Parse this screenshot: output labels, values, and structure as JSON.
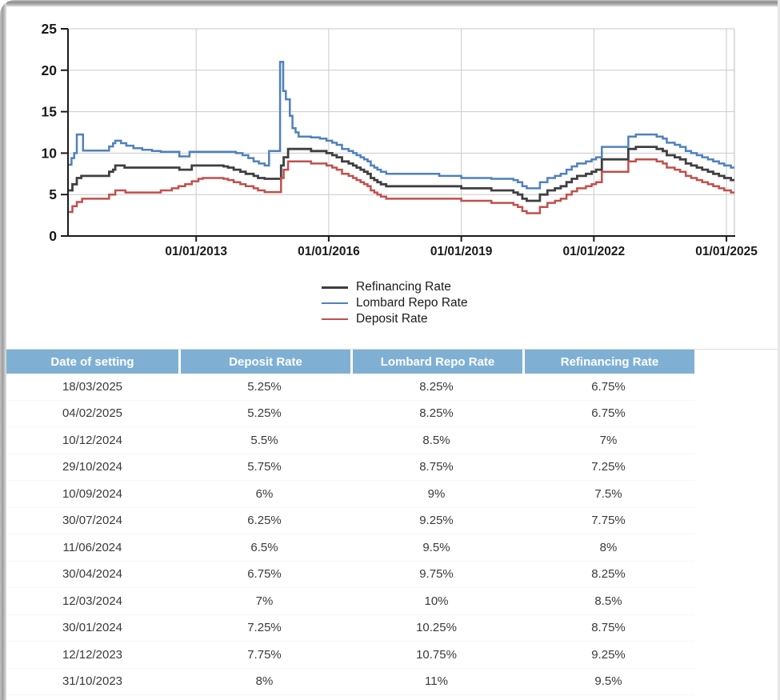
{
  "chart_data": {
    "type": "line",
    "interpolation": "step-after",
    "title": "",
    "xlabel": "",
    "ylabel": "",
    "grid": true,
    "legend_position": "bottom",
    "ylim": [
      0,
      25
    ],
    "y_ticks": [
      0,
      5,
      10,
      15,
      20,
      25
    ],
    "x_range": [
      2010.1,
      2025.18
    ],
    "x_ticks": [
      {
        "t": 2013,
        "label": "01/01/2013"
      },
      {
        "t": 2016,
        "label": "01/01/2016"
      },
      {
        "t": 2019,
        "label": "01/01/2019"
      },
      {
        "t": 2022,
        "label": "01/01/2022"
      },
      {
        "t": 2025,
        "label": "01/01/2025"
      }
    ],
    "series": [
      {
        "name": "Refinancing Rate",
        "color": "#3f3f3f",
        "points": [
          [
            2010.12,
            5.5
          ],
          [
            2010.2,
            6.25
          ],
          [
            2010.3,
            7.0
          ],
          [
            2010.4,
            7.25
          ],
          [
            2011.03,
            7.75
          ],
          [
            2011.12,
            8.0
          ],
          [
            2011.17,
            8.5
          ],
          [
            2011.38,
            8.25
          ],
          [
            2012.62,
            8.0
          ],
          [
            2012.9,
            8.5
          ],
          [
            2013.62,
            8.4
          ],
          [
            2013.72,
            8.25
          ],
          [
            2013.85,
            8.0
          ],
          [
            2014.0,
            7.75
          ],
          [
            2014.12,
            7.5
          ],
          [
            2014.3,
            7.25
          ],
          [
            2014.4,
            7.0
          ],
          [
            2014.55,
            6.9
          ],
          [
            2014.92,
            8.5
          ],
          [
            2014.98,
            9.5
          ],
          [
            2015.08,
            10.5
          ],
          [
            2015.6,
            10.25
          ],
          [
            2015.95,
            10.0
          ],
          [
            2016.08,
            9.75
          ],
          [
            2016.18,
            9.5
          ],
          [
            2016.3,
            9.0
          ],
          [
            2016.45,
            8.75
          ],
          [
            2016.55,
            8.5
          ],
          [
            2016.63,
            8.25
          ],
          [
            2016.72,
            8.0
          ],
          [
            2016.8,
            7.75
          ],
          [
            2016.88,
            7.5
          ],
          [
            2016.95,
            7.0
          ],
          [
            2017.03,
            6.75
          ],
          [
            2017.1,
            6.5
          ],
          [
            2017.18,
            6.25
          ],
          [
            2017.3,
            6.0
          ],
          [
            2019.0,
            5.75
          ],
          [
            2019.68,
            5.5
          ],
          [
            2020.18,
            5.25
          ],
          [
            2020.28,
            5.0
          ],
          [
            2020.38,
            4.5
          ],
          [
            2020.48,
            4.25
          ],
          [
            2020.78,
            5.0
          ],
          [
            2020.95,
            5.5
          ],
          [
            2021.12,
            5.75
          ],
          [
            2021.25,
            6.0
          ],
          [
            2021.38,
            6.5
          ],
          [
            2021.5,
            6.9
          ],
          [
            2021.62,
            7.25
          ],
          [
            2021.82,
            7.5
          ],
          [
            2021.95,
            7.75
          ],
          [
            2022.05,
            8.0
          ],
          [
            2022.18,
            9.25
          ],
          [
            2022.78,
            10.5
          ],
          [
            2022.95,
            10.75
          ],
          [
            2023.42,
            10.5
          ],
          [
            2023.56,
            10.25
          ],
          [
            2023.65,
            9.75
          ],
          [
            2023.83,
            9.5
          ],
          [
            2023.95,
            9.25
          ],
          [
            2024.08,
            8.75
          ],
          [
            2024.2,
            8.5
          ],
          [
            2024.33,
            8.25
          ],
          [
            2024.45,
            8.0
          ],
          [
            2024.58,
            7.75
          ],
          [
            2024.7,
            7.5
          ],
          [
            2024.83,
            7.25
          ],
          [
            2024.95,
            7.0
          ],
          [
            2025.1,
            6.75
          ],
          [
            2025.18,
            6.75
          ]
        ]
      },
      {
        "name": "Lombard Repo Rate",
        "color": "#4f81bd",
        "points": [
          [
            2010.12,
            8.6
          ],
          [
            2010.18,
            9.4
          ],
          [
            2010.24,
            10.0
          ],
          [
            2010.3,
            12.25
          ],
          [
            2010.44,
            10.3
          ],
          [
            2011.03,
            10.8
          ],
          [
            2011.12,
            11.2
          ],
          [
            2011.17,
            11.5
          ],
          [
            2011.3,
            11.2
          ],
          [
            2011.42,
            10.9
          ],
          [
            2011.58,
            10.6
          ],
          [
            2011.78,
            10.4
          ],
          [
            2012.0,
            10.25
          ],
          [
            2012.2,
            10.15
          ],
          [
            2012.62,
            9.6
          ],
          [
            2012.85,
            10.15
          ],
          [
            2013.9,
            10.0
          ],
          [
            2014.05,
            9.75
          ],
          [
            2014.18,
            9.4
          ],
          [
            2014.3,
            9.0
          ],
          [
            2014.42,
            8.75
          ],
          [
            2014.55,
            8.5
          ],
          [
            2014.65,
            10.25
          ],
          [
            2014.9,
            21.0
          ],
          [
            2014.97,
            17.5
          ],
          [
            2015.03,
            16.5
          ],
          [
            2015.12,
            14.5
          ],
          [
            2015.18,
            13.0
          ],
          [
            2015.25,
            12.5
          ],
          [
            2015.32,
            12.0
          ],
          [
            2015.6,
            11.9
          ],
          [
            2015.8,
            11.75
          ],
          [
            2015.95,
            11.5
          ],
          [
            2016.08,
            11.25
          ],
          [
            2016.18,
            11.0
          ],
          [
            2016.3,
            10.5
          ],
          [
            2016.45,
            10.25
          ],
          [
            2016.55,
            10.0
          ],
          [
            2016.63,
            9.75
          ],
          [
            2016.72,
            9.5
          ],
          [
            2016.8,
            9.25
          ],
          [
            2016.88,
            9.0
          ],
          [
            2016.95,
            8.5
          ],
          [
            2017.03,
            8.25
          ],
          [
            2017.1,
            8.0
          ],
          [
            2017.18,
            7.75
          ],
          [
            2017.3,
            7.5
          ],
          [
            2018.5,
            7.25
          ],
          [
            2019.0,
            7.0
          ],
          [
            2019.68,
            6.9
          ],
          [
            2020.18,
            6.75
          ],
          [
            2020.28,
            6.5
          ],
          [
            2020.38,
            6.0
          ],
          [
            2020.48,
            5.75
          ],
          [
            2020.78,
            6.5
          ],
          [
            2020.95,
            7.0
          ],
          [
            2021.12,
            7.25
          ],
          [
            2021.25,
            7.5
          ],
          [
            2021.38,
            8.0
          ],
          [
            2021.5,
            8.4
          ],
          [
            2021.62,
            8.75
          ],
          [
            2021.82,
            9.0
          ],
          [
            2021.95,
            9.25
          ],
          [
            2022.05,
            9.5
          ],
          [
            2022.18,
            10.75
          ],
          [
            2022.78,
            12.0
          ],
          [
            2022.95,
            12.25
          ],
          [
            2023.42,
            12.0
          ],
          [
            2023.56,
            11.75
          ],
          [
            2023.65,
            11.25
          ],
          [
            2023.83,
            11.0
          ],
          [
            2023.95,
            10.75
          ],
          [
            2024.08,
            10.25
          ],
          [
            2024.2,
            10.0
          ],
          [
            2024.33,
            9.75
          ],
          [
            2024.45,
            9.5
          ],
          [
            2024.58,
            9.25
          ],
          [
            2024.7,
            9.0
          ],
          [
            2024.83,
            8.75
          ],
          [
            2024.95,
            8.5
          ],
          [
            2025.1,
            8.25
          ],
          [
            2025.18,
            8.25
          ]
        ]
      },
      {
        "name": "Deposit Rate",
        "color": "#c0504d",
        "points": [
          [
            2010.12,
            2.9
          ],
          [
            2010.2,
            3.6
          ],
          [
            2010.3,
            4.1
          ],
          [
            2010.42,
            4.5
          ],
          [
            2011.03,
            5.0
          ],
          [
            2011.17,
            5.5
          ],
          [
            2011.4,
            5.25
          ],
          [
            2012.2,
            5.5
          ],
          [
            2012.45,
            5.75
          ],
          [
            2012.6,
            6.0
          ],
          [
            2012.75,
            6.25
          ],
          [
            2012.9,
            6.6
          ],
          [
            2013.05,
            6.9
          ],
          [
            2013.15,
            7.0
          ],
          [
            2013.62,
            6.9
          ],
          [
            2013.72,
            6.75
          ],
          [
            2013.85,
            6.5
          ],
          [
            2014.0,
            6.25
          ],
          [
            2014.12,
            6.0
          ],
          [
            2014.3,
            5.75
          ],
          [
            2014.4,
            5.5
          ],
          [
            2014.55,
            5.3
          ],
          [
            2014.92,
            7.0
          ],
          [
            2014.98,
            8.0
          ],
          [
            2015.08,
            9.0
          ],
          [
            2015.6,
            8.75
          ],
          [
            2015.95,
            8.5
          ],
          [
            2016.08,
            8.25
          ],
          [
            2016.18,
            8.0
          ],
          [
            2016.3,
            7.5
          ],
          [
            2016.45,
            7.25
          ],
          [
            2016.55,
            7.0
          ],
          [
            2016.63,
            6.75
          ],
          [
            2016.72,
            6.5
          ],
          [
            2016.8,
            6.25
          ],
          [
            2016.88,
            6.0
          ],
          [
            2016.95,
            5.5
          ],
          [
            2017.03,
            5.25
          ],
          [
            2017.1,
            5.0
          ],
          [
            2017.18,
            4.75
          ],
          [
            2017.3,
            4.5
          ],
          [
            2019.0,
            4.25
          ],
          [
            2019.68,
            4.0
          ],
          [
            2020.18,
            3.75
          ],
          [
            2020.28,
            3.5
          ],
          [
            2020.38,
            3.0
          ],
          [
            2020.48,
            2.75
          ],
          [
            2020.78,
            3.5
          ],
          [
            2020.95,
            4.0
          ],
          [
            2021.12,
            4.25
          ],
          [
            2021.25,
            4.5
          ],
          [
            2021.38,
            5.0
          ],
          [
            2021.5,
            5.4
          ],
          [
            2021.62,
            5.75
          ],
          [
            2021.82,
            6.0
          ],
          [
            2021.95,
            6.25
          ],
          [
            2022.05,
            6.5
          ],
          [
            2022.18,
            7.75
          ],
          [
            2022.78,
            9.0
          ],
          [
            2022.95,
            9.25
          ],
          [
            2023.42,
            9.0
          ],
          [
            2023.56,
            8.75
          ],
          [
            2023.65,
            8.25
          ],
          [
            2023.83,
            8.0
          ],
          [
            2023.95,
            7.75
          ],
          [
            2024.08,
            7.25
          ],
          [
            2024.2,
            7.0
          ],
          [
            2024.33,
            6.75
          ],
          [
            2024.45,
            6.5
          ],
          [
            2024.58,
            6.25
          ],
          [
            2024.7,
            6.0
          ],
          [
            2024.83,
            5.75
          ],
          [
            2024.95,
            5.5
          ],
          [
            2025.1,
            5.25
          ],
          [
            2025.18,
            5.25
          ]
        ]
      }
    ]
  },
  "table": {
    "header_bg": "#7fb0d4",
    "columns": [
      "Date of setting",
      "Deposit Rate",
      "Lombard Repo Rate",
      "Refinancing Rate"
    ],
    "rows": [
      [
        "18/03/2025",
        "5.25%",
        "8.25%",
        "6.75%"
      ],
      [
        "04/02/2025",
        "5.25%",
        "8.25%",
        "6.75%"
      ],
      [
        "10/12/2024",
        "5.5%",
        "8.5%",
        "7%"
      ],
      [
        "29/10/2024",
        "5.75%",
        "8.75%",
        "7.25%"
      ],
      [
        "10/09/2024",
        "6%",
        "9%",
        "7.5%"
      ],
      [
        "30/07/2024",
        "6.25%",
        "9.25%",
        "7.75%"
      ],
      [
        "11/06/2024",
        "6.5%",
        "9.5%",
        "8%"
      ],
      [
        "30/04/2024",
        "6.75%",
        "9.75%",
        "8.25%"
      ],
      [
        "12/03/2024",
        "7%",
        "10%",
        "8.5%"
      ],
      [
        "30/01/2024",
        "7.25%",
        "10.25%",
        "8.75%"
      ],
      [
        "12/12/2023",
        "7.75%",
        "10.75%",
        "9.25%"
      ],
      [
        "31/10/2023",
        "8%",
        "11%",
        "9.5%"
      ]
    ]
  }
}
